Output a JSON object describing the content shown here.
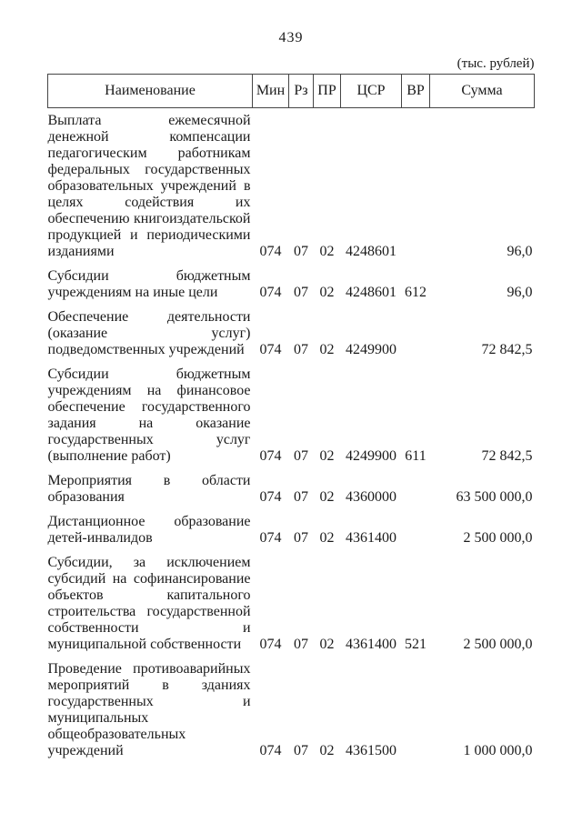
{
  "page": {
    "number": "439",
    "unit_note": "(тыс. рублей)"
  },
  "table": {
    "headers": {
      "name": "Наименование",
      "min": "Мин",
      "rz": "Рз",
      "pr": "ПР",
      "csr": "ЦСР",
      "vr": "ВР",
      "sum": "Сумма"
    },
    "rows": [
      {
        "name": "Выплата ежемесячной денежной компенсации педагогическим работникам федеральных государственных образовательных учреждений в целях содействия их обеспечению книгоиздательской продукцией и периодическими изданиями",
        "min": "074",
        "rz": "07",
        "pr": "02",
        "csr": "4248601",
        "vr": "",
        "sum": "96,0"
      },
      {
        "name": "Субсидии бюджетным учреждениям на иные цели",
        "min": "074",
        "rz": "07",
        "pr": "02",
        "csr": "4248601",
        "vr": "612",
        "sum": "96,0"
      },
      {
        "name": "Обеспечение деятельности (оказание услуг) подведомственных учреждений",
        "min": "074",
        "rz": "07",
        "pr": "02",
        "csr": "4249900",
        "vr": "",
        "sum": "72 842,5"
      },
      {
        "name": "Субсидии бюджетным учреждениям на финансовое обеспечение государственного задания на оказание государственных услуг (выполнение работ)",
        "min": "074",
        "rz": "07",
        "pr": "02",
        "csr": "4249900",
        "vr": "611",
        "sum": "72 842,5"
      },
      {
        "name": "Мероприятия в области образования",
        "min": "074",
        "rz": "07",
        "pr": "02",
        "csr": "4360000",
        "vr": "",
        "sum": "63 500 000,0"
      },
      {
        "name": "Дистанционное образование детей-инвалидов",
        "min": "074",
        "rz": "07",
        "pr": "02",
        "csr": "4361400",
        "vr": "",
        "sum": "2 500 000,0"
      },
      {
        "name": "Субсидии, за исключением субсидий на софинансирование объектов капитального строительства государственной собственности и муниципальной собственности",
        "min": "074",
        "rz": "07",
        "pr": "02",
        "csr": "4361400",
        "vr": "521",
        "sum": "2 500 000,0"
      },
      {
        "name": "Проведение противоаварийных мероприятий в зданиях государственных и муниципальных общеобразовательных учреждений",
        "min": "074",
        "rz": "07",
        "pr": "02",
        "csr": "4361500",
        "vr": "",
        "sum": "1 000 000,0"
      }
    ]
  }
}
